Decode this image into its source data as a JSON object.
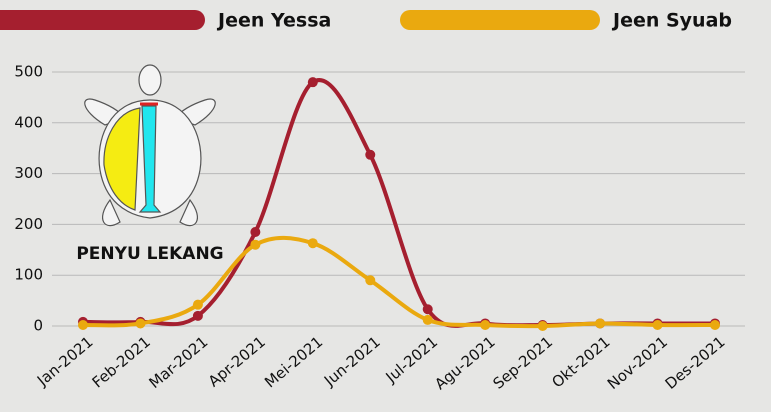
{
  "chart_data": {
    "type": "line",
    "categories": [
      "Jan-2021",
      "Feb-2021",
      "Mar-2021",
      "Apr-2021",
      "Mei-2021",
      "Jun-2021",
      "Jul-2021",
      "Agu-2021",
      "Sep-2021",
      "Okt-2021",
      "Nov-2021",
      "Des-2021"
    ],
    "series": [
      {
        "name": "Jeen Yessa",
        "color": "#a51f2f",
        "values": [
          8,
          8,
          20,
          185,
          480,
          337,
          33,
          5,
          2,
          5,
          5,
          5
        ]
      },
      {
        "name": "Jeen Syuab",
        "color": "#eaa90f",
        "values": [
          2,
          5,
          42,
          160,
          163,
          90,
          12,
          2,
          0,
          5,
          2,
          2
        ]
      }
    ],
    "ylim": [
      0,
      500
    ],
    "yticks": [
      0,
      100,
      200,
      300,
      400,
      500
    ],
    "grid": true,
    "annotation": "PENYU LEKANG"
  }
}
